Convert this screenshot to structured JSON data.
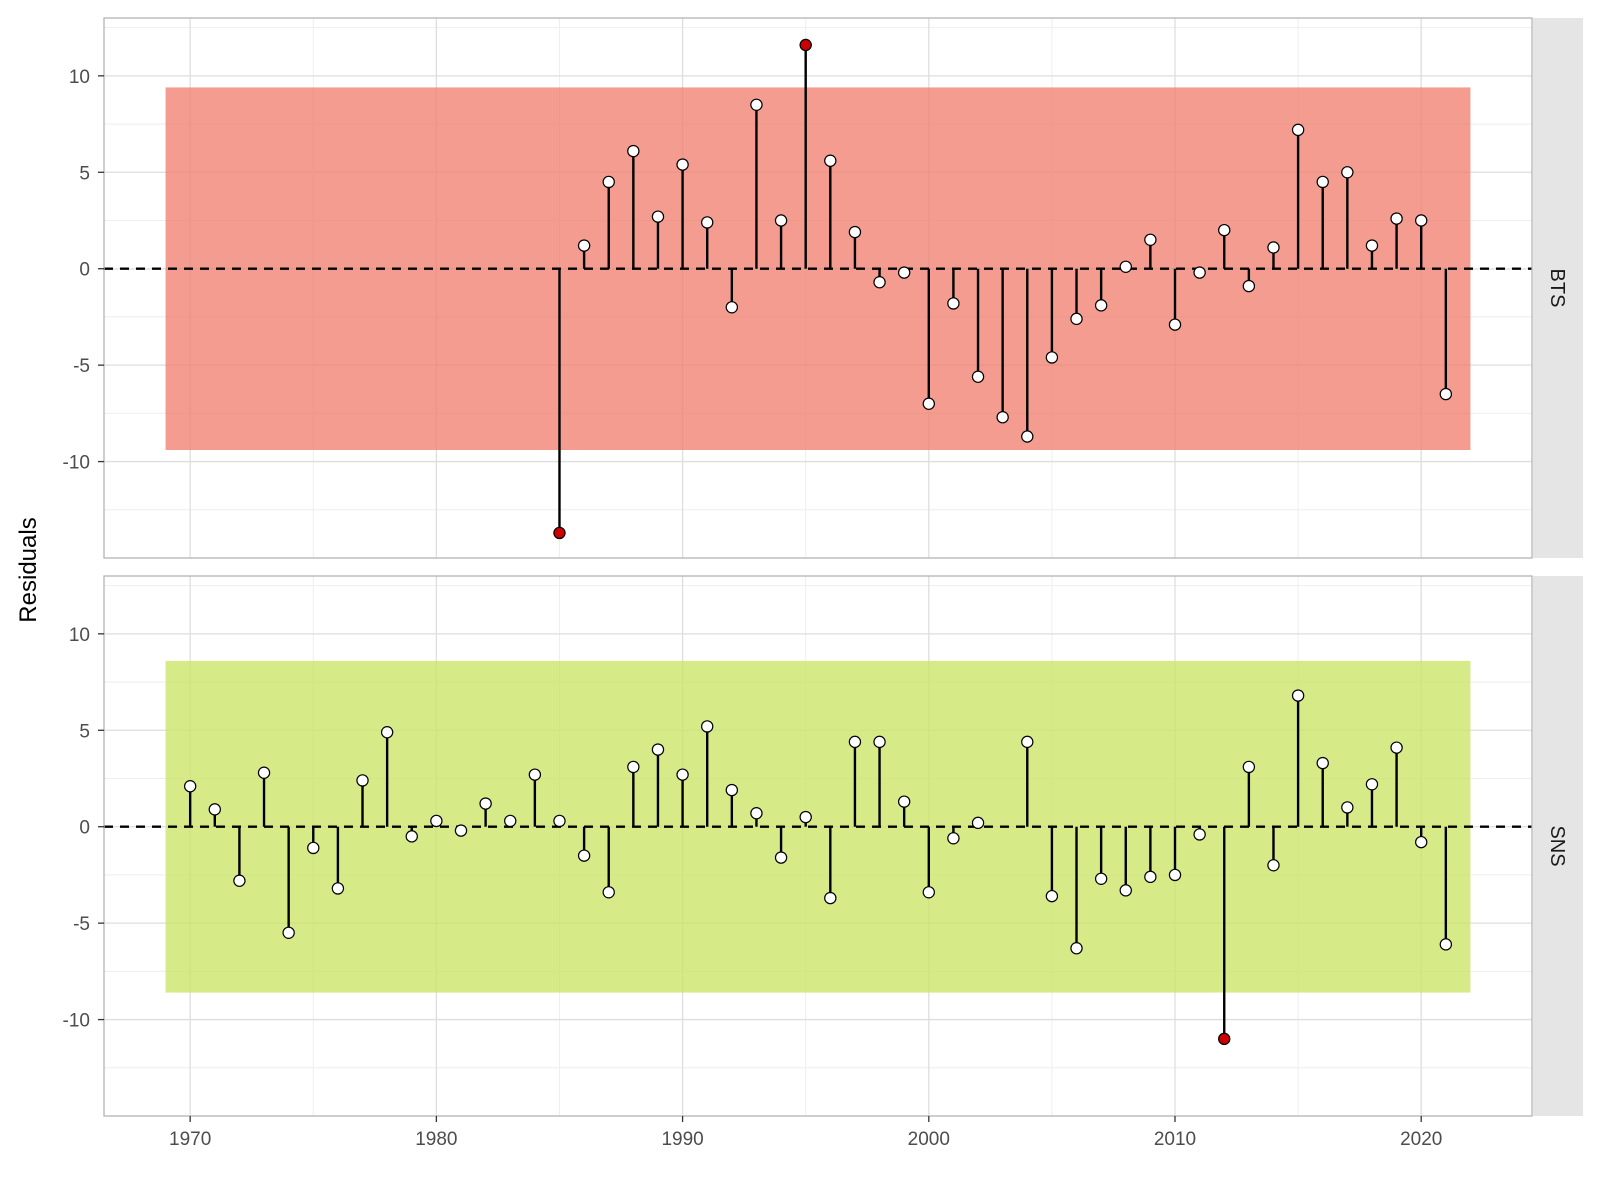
{
  "chart_data": {
    "type": "scatter",
    "subtype": "lollipop-residuals-faceted",
    "ylabel": "Residuals",
    "xlabel": "",
    "xlim": [
      1966.5,
      2024.5
    ],
    "ylim": [
      -15,
      13
    ],
    "x_ticks": [
      1970,
      1980,
      1990,
      2000,
      2010,
      2020
    ],
    "y_ticks": [
      -10,
      -5,
      0,
      5,
      10
    ],
    "y_tick_labels": [
      "-10",
      "-5",
      "0",
      "5",
      "10"
    ],
    "x_tick_labels": [
      "1970",
      "1980",
      "1990",
      "2000",
      "2010",
      "2020"
    ],
    "grid": true,
    "zero_line": "dashed",
    "colors": {
      "stem": "#000000",
      "point_normal_fill": "#ffffff",
      "point_outlier_fill": "#cc0000",
      "strip_bg": "#e5e5e5",
      "panel_border": "#b3b3b3",
      "grid_major": "#dedede",
      "grid_minor": "#eeeeee"
    },
    "panels": [
      {
        "name": "BTS",
        "band_color": "#f08070",
        "band": {
          "x": [
            1969,
            2022
          ],
          "y": [
            -9.4,
            9.4
          ]
        },
        "x": [
          1985,
          1986,
          1987,
          1988,
          1989,
          1990,
          1991,
          1992,
          1993,
          1994,
          1995,
          1996,
          1997,
          1998,
          1999,
          2000,
          2001,
          2002,
          2003,
          2004,
          2005,
          2006,
          2007,
          2008,
          2009,
          2010,
          2011,
          2012,
          2013,
          2014,
          2015,
          2016,
          2017,
          2018,
          2019,
          2020,
          2021
        ],
        "y": [
          -13.7,
          1.2,
          4.5,
          6.1,
          2.7,
          5.4,
          2.4,
          -2.0,
          8.5,
          2.5,
          11.6,
          5.6,
          1.9,
          -0.7,
          -0.2,
          -7.0,
          -1.8,
          -5.6,
          -7.7,
          -8.7,
          -4.6,
          -2.6,
          -1.9,
          0.1,
          1.5,
          -2.9,
          -0.2,
          2.0,
          -0.9,
          1.1,
          7.2,
          4.5,
          5.0,
          1.2,
          2.6,
          2.5,
          -6.5
        ],
        "outliers": [
          1985,
          1995
        ]
      },
      {
        "name": "SNS",
        "band_color": "#cce466",
        "band": {
          "x": [
            1969,
            2022
          ],
          "y": [
            -8.6,
            8.6
          ]
        },
        "x": [
          1970,
          1971,
          1972,
          1973,
          1974,
          1975,
          1976,
          1977,
          1978,
          1979,
          1980,
          1981,
          1982,
          1983,
          1984,
          1985,
          1986,
          1987,
          1988,
          1989,
          1990,
          1991,
          1992,
          1993,
          1994,
          1995,
          1996,
          1997,
          1998,
          1999,
          2000,
          2001,
          2002,
          2004,
          2005,
          2006,
          2007,
          2008,
          2009,
          2010,
          2011,
          2012,
          2013,
          2014,
          2015,
          2016,
          2017,
          2018,
          2019,
          2020,
          2021
        ],
        "y": [
          2.1,
          0.9,
          -2.8,
          2.8,
          -5.5,
          -1.1,
          -3.2,
          2.4,
          4.9,
          -0.5,
          0.3,
          -0.2,
          1.2,
          0.3,
          2.7,
          0.3,
          -1.5,
          -3.4,
          3.1,
          4.0,
          2.7,
          5.2,
          1.9,
          0.7,
          -1.6,
          0.5,
          -3.7,
          4.4,
          4.4,
          1.3,
          -3.4,
          -0.6,
          0.2,
          4.4,
          -3.6,
          -6.3,
          -2.7,
          -3.3,
          -2.6,
          -2.5,
          -0.4,
          -11.0,
          3.1,
          -2.0,
          6.8,
          3.3,
          1.0,
          2.2,
          4.1,
          -0.8,
          -6.1
        ],
        "outliers": [
          2012
        ]
      }
    ]
  }
}
